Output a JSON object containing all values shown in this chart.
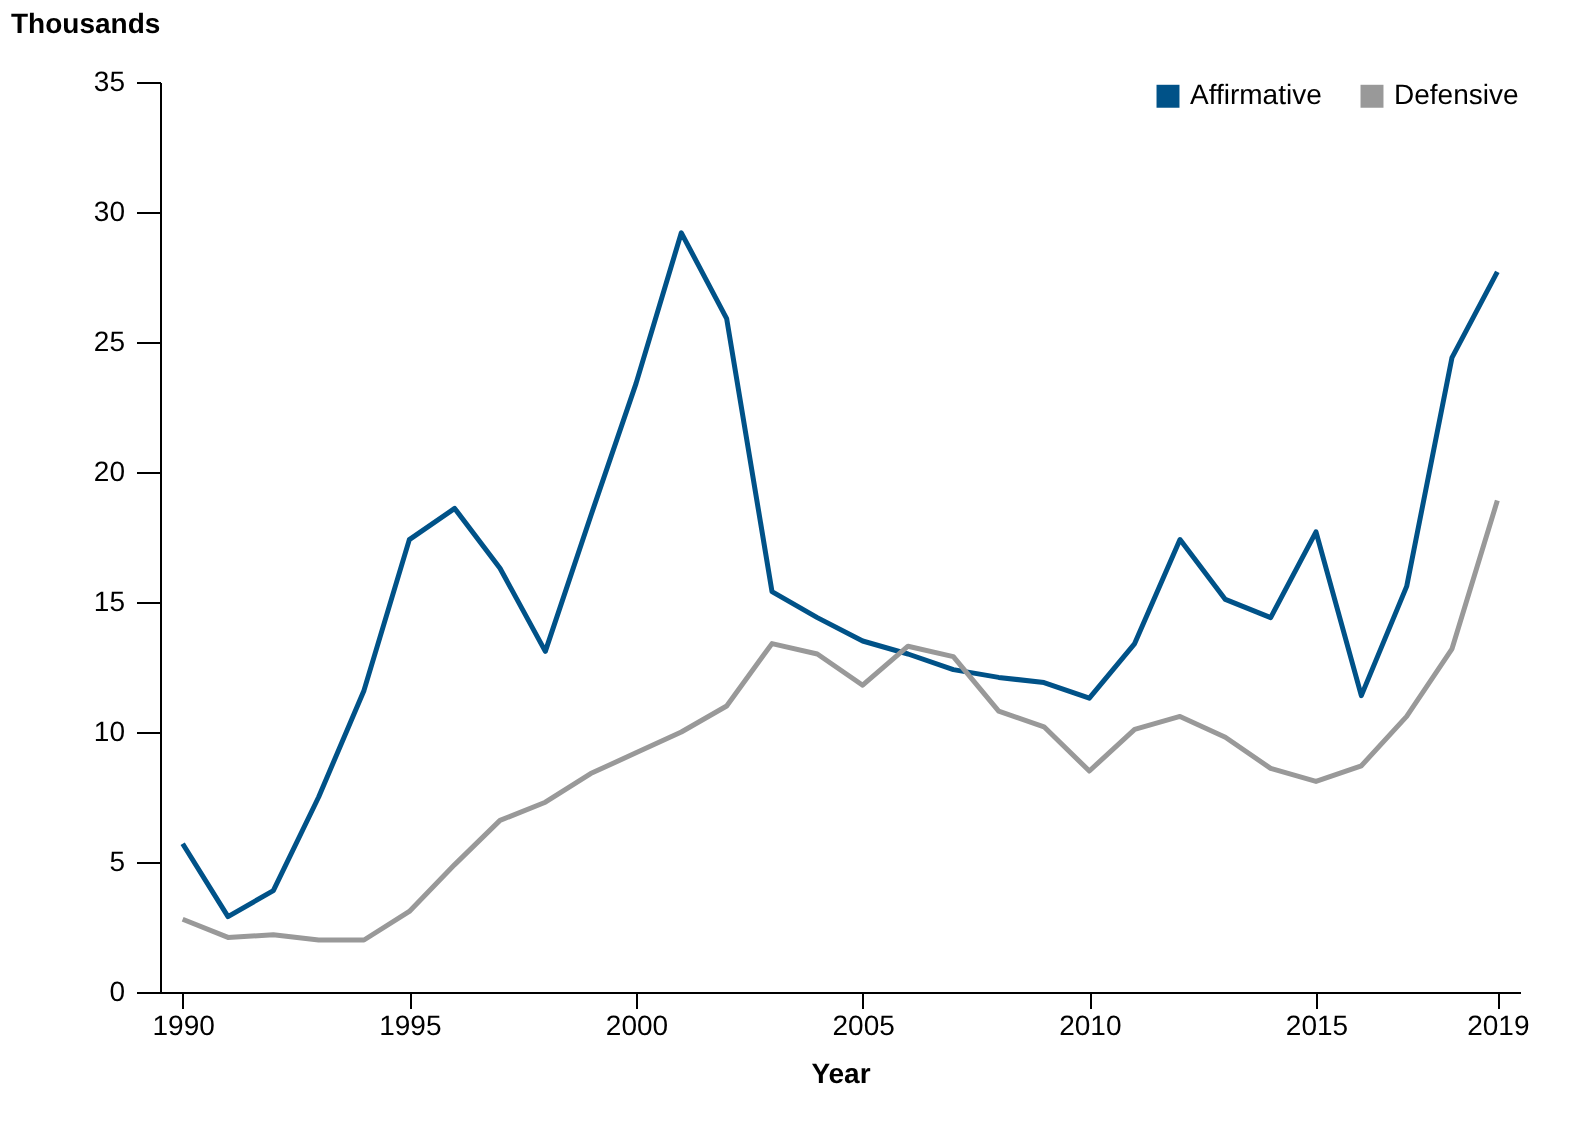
{
  "chart_data": {
    "type": "line",
    "xlabel": "Year",
    "ylabel": "Thousands",
    "x": [
      1990,
      1991,
      1992,
      1993,
      1994,
      1995,
      1996,
      1997,
      1998,
      1999,
      2000,
      2001,
      2002,
      2003,
      2004,
      2005,
      2006,
      2007,
      2008,
      2009,
      2010,
      2011,
      2012,
      2013,
      2014,
      2015,
      2016,
      2017,
      2018,
      2019
    ],
    "series": [
      {
        "name": "Affirmative",
        "color": "#005288",
        "values": [
          5.7,
          2.9,
          3.9,
          7.5,
          11.6,
          17.4,
          18.6,
          16.3,
          13.1,
          18.3,
          23.4,
          29.2,
          25.9,
          15.4,
          14.4,
          13.5,
          13.0,
          12.4,
          12.1,
          11.9,
          11.3,
          13.4,
          17.4,
          15.1,
          14.4,
          17.7,
          11.4,
          15.6,
          24.4,
          27.7
        ]
      },
      {
        "name": "Defensive",
        "color": "#999999",
        "values": [
          2.8,
          2.1,
          2.2,
          2.0,
          2.0,
          3.1,
          4.9,
          6.6,
          7.3,
          8.4,
          9.2,
          10.0,
          11.0,
          13.4,
          13.0,
          11.8,
          13.3,
          12.9,
          10.8,
          10.2,
          8.5,
          10.1,
          10.6,
          9.8,
          8.6,
          8.1,
          8.7,
          10.6,
          13.2,
          18.9
        ]
      }
    ],
    "xlim": [
      1989.5,
      2019.5
    ],
    "xticks": [
      1990,
      1995,
      2000,
      2005,
      2010,
      2015,
      2019
    ],
    "ylim": [
      0,
      35
    ],
    "yticks": [
      0,
      5,
      10,
      15,
      20,
      25,
      30,
      35
    ],
    "grid": false,
    "legend": "top right",
    "marker": "none",
    "line_style": "solid"
  }
}
